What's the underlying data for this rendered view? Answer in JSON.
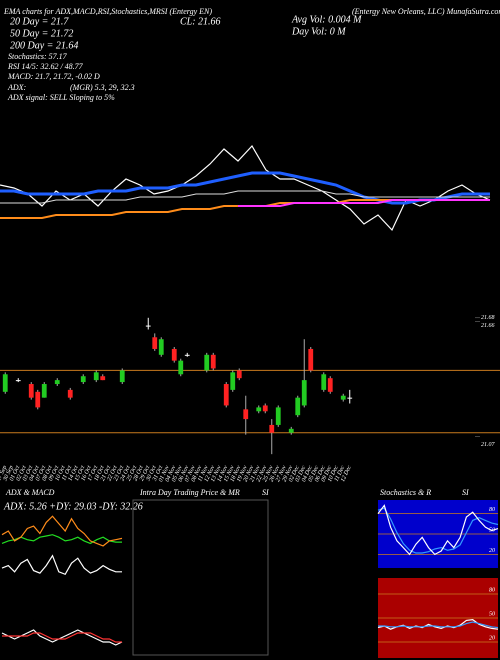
{
  "chart_data": [
    {
      "type": "line",
      "title": "CL: 21.66",
      "annotations": [
        "EMA charts for ADX,MACD,RSI,Stochastics,MRSI (Entergy EN)",
        "20 Day = 21.7",
        "50 Day = 21.72",
        "200 Day = 21.64",
        "Stochastics: 57.17",
        "RSI 14/5: 32.62 / 48.77",
        "MACD: 21.7, 21.72, -0.02 D",
        "ADX:",
        "(MGR) 5.3, 29, 32.3",
        "ADX  signal: SELL Sloping to 5%",
        "Avg Vol: 0.004  M",
        "Day Vol: 0  M",
        "(Entergy New Orleans, LLC) MunafaSutra.com"
      ],
      "ylim": [
        21.0,
        22.0
      ],
      "series": [
        {
          "color": "#ffffff",
          "values": [
            21.45,
            21.44,
            21.42,
            21.38,
            21.43,
            21.4,
            21.42,
            21.38,
            21.43,
            21.47,
            21.45,
            21.42,
            21.43,
            21.45,
            21.48,
            21.52,
            21.57,
            21.53,
            21.58,
            21.5,
            21.47,
            21.47,
            21.45,
            21.43,
            21.4,
            21.37,
            21.32,
            21.35,
            21.3,
            21.4,
            21.38,
            21.4,
            21.43,
            21.45,
            21.42,
            21.4
          ]
        },
        {
          "color": "#1f5fff",
          "values": [
            21.43,
            21.43,
            21.42,
            21.42,
            21.42,
            21.42,
            21.42,
            21.43,
            21.43,
            21.43,
            21.44,
            21.44,
            21.44,
            21.45,
            21.45,
            21.46,
            21.47,
            21.48,
            21.49,
            21.49,
            21.49,
            21.48,
            21.47,
            21.46,
            21.45,
            21.43,
            21.41,
            21.4,
            21.39,
            21.39,
            21.4,
            21.4,
            21.41,
            21.42,
            21.42,
            21.42
          ]
        },
        {
          "color": "#dddddd",
          "values": [
            21.39,
            21.39,
            21.39,
            21.39,
            21.4,
            21.4,
            21.4,
            21.4,
            21.4,
            21.4,
            21.41,
            21.41,
            21.41,
            21.41,
            21.42,
            21.42,
            21.42,
            21.43,
            21.43,
            21.43,
            21.43,
            21.43,
            21.43,
            21.43,
            21.42,
            21.42,
            21.41,
            21.41,
            21.41,
            21.41,
            21.41,
            21.41,
            21.41,
            21.41,
            21.41,
            21.41
          ]
        },
        {
          "color": "#ff8c1a",
          "values": [
            21.34,
            21.34,
            21.34,
            21.34,
            21.35,
            21.35,
            21.35,
            21.35,
            21.35,
            21.36,
            21.36,
            21.36,
            21.36,
            21.37,
            21.37,
            21.37,
            21.38,
            21.38,
            21.38,
            21.38,
            21.39,
            21.39,
            21.39,
            21.39,
            21.39,
            21.4,
            21.4,
            21.4,
            21.4,
            21.4,
            21.4,
            21.4,
            21.4,
            21.4,
            21.4,
            21.4
          ]
        },
        {
          "color": "#ff33ff",
          "values": [
            null,
            null,
            null,
            null,
            null,
            null,
            null,
            null,
            null,
            null,
            null,
            null,
            null,
            null,
            null,
            null,
            null,
            21.38,
            21.38,
            21.38,
            21.38,
            21.39,
            21.39,
            21.39,
            21.39,
            21.39,
            21.39,
            21.39,
            21.4,
            21.4,
            21.4,
            21.4,
            21.4,
            21.4,
            21.4,
            21.4
          ]
        }
      ]
    },
    {
      "type": "candlestick",
      "categories": [
        "27 Sep",
        "30 Sep",
        "01 Oct",
        "02 Oct",
        "03 Oct",
        "04 Oct",
        "07 Oct",
        "08 Oct",
        "09 Oct",
        "10 Oct",
        "11 Oct",
        "14 Oct",
        "15 Oct",
        "16 Oct",
        "17 Oct",
        "18 Oct",
        "21 Oct",
        "22 Oct",
        "23 Oct",
        "24 Oct",
        "25 Oct",
        "28 Oct",
        "29 Oct",
        "30 Oct",
        "31 Oct",
        "01 Nov",
        "04 Nov",
        "05 Nov",
        "06 Nov",
        "07 Nov",
        "08 Nov",
        "11 Nov",
        "12 Nov",
        "13 Nov",
        "14 Nov",
        "15 Nov",
        "18 Nov",
        "19 Nov",
        "20 Nov",
        "21 Nov",
        "22 Nov",
        "25 Nov",
        "26 Nov",
        "27 Nov",
        "29 Nov",
        "02 Dec",
        "03 Dec",
        "04 Dec",
        "05 Dec",
        "06 Dec",
        "09 Dec",
        "10 Dec",
        "11 Dec",
        "12 Dec"
      ],
      "open": [
        21.3,
        null,
        21.36,
        null,
        21.34,
        21.3,
        21.27,
        null,
        21.34,
        null,
        21.31,
        null,
        21.35,
        null,
        21.36,
        21.38,
        null,
        null,
        21.35,
        null,
        null,
        null,
        21.64,
        21.58,
        21.49,
        null,
        21.52,
        21.39,
        21.49,
        null,
        null,
        21.41,
        21.49,
        null,
        21.34,
        21.31,
        21.41,
        21.21,
        null,
        21.2,
        21.23,
        21.13,
        21.13,
        null,
        21.09,
        21.18,
        21.23,
        21.52,
        null,
        21.31,
        21.37,
        null,
        21.26,
        21.27
      ],
      "high": [
        21.4,
        null,
        21.37,
        null,
        21.35,
        21.31,
        21.35,
        null,
        21.37,
        null,
        21.32,
        null,
        21.39,
        null,
        21.41,
        21.39,
        null,
        null,
        21.42,
        null,
        null,
        null,
        21.68,
        21.6,
        21.58,
        null,
        21.53,
        21.47,
        21.5,
        null,
        null,
        21.5,
        21.5,
        null,
        21.35,
        21.41,
        21.42,
        21.28,
        null,
        21.23,
        21.24,
        21.16,
        21.23,
        null,
        21.12,
        21.28,
        21.57,
        21.53,
        null,
        21.4,
        21.38,
        null,
        21.29,
        21.31
      ],
      "low": [
        21.29,
        null,
        21.35,
        null,
        21.26,
        21.21,
        21.27,
        null,
        21.33,
        null,
        21.26,
        null,
        21.34,
        null,
        21.35,
        21.36,
        null,
        null,
        21.34,
        null,
        null,
        null,
        21.62,
        21.51,
        21.48,
        null,
        21.45,
        21.38,
        21.48,
        null,
        null,
        21.4,
        21.41,
        null,
        21.22,
        21.3,
        21.36,
        21.08,
        null,
        21.19,
        21.19,
        20.98,
        21.12,
        null,
        21.08,
        21.17,
        21.22,
        21.4,
        null,
        21.3,
        21.29,
        null,
        21.25,
        21.24
      ],
      "close": [
        21.39,
        null,
        21.36,
        null,
        21.27,
        21.22,
        21.34,
        null,
        21.36,
        null,
        21.27,
        null,
        21.38,
        null,
        21.4,
        21.36,
        null,
        null,
        21.41,
        null,
        null,
        null,
        21.64,
        21.52,
        21.57,
        null,
        21.46,
        21.46,
        21.49,
        null,
        null,
        21.49,
        21.42,
        null,
        21.23,
        21.4,
        21.37,
        21.16,
        null,
        21.22,
        21.2,
        21.09,
        21.22,
        null,
        21.11,
        21.27,
        21.36,
        21.41,
        null,
        21.39,
        21.3,
        null,
        21.28,
        21.27
      ],
      "ylim": [
        20.95,
        21.72
      ],
      "yticks": [
        21.68,
        21.66,
        21.07
      ],
      "levels": [
        21.41,
        21.09
      ],
      "level_color": "#c87a1e",
      "up_color": "#22cc22",
      "down_color": "#ff2222"
    },
    {
      "type": "line",
      "title": "ADX  & MACD",
      "subtitle": "ADX: 5.26 +DY: 29.03 -DY: 32.26",
      "ylim": [
        0,
        55
      ],
      "series": [
        {
          "color": "#22dd22",
          "values": [
            28,
            30,
            31,
            33,
            31,
            30,
            33,
            34,
            35,
            33,
            30,
            31,
            33,
            30,
            28,
            31,
            33,
            30,
            29,
            29
          ]
        },
        {
          "color": "#ff8c1a",
          "values": [
            35,
            38,
            30,
            33,
            40,
            42,
            36,
            45,
            50,
            44,
            38,
            48,
            40,
            36,
            30,
            28,
            26,
            30,
            31,
            32
          ]
        },
        {
          "color": "#ffffff",
          "values": [
            8,
            10,
            5,
            12,
            15,
            6,
            4,
            10,
            18,
            5,
            3,
            12,
            16,
            8,
            4,
            6,
            10,
            7,
            5,
            5
          ]
        }
      ]
    },
    {
      "type": "line",
      "ylim": [
        -0.08,
        0.08
      ],
      "series": [
        {
          "color": "#ffffff",
          "values": [
            0.01,
            0.0,
            -0.01,
            0.0,
            0.01,
            0.02,
            0.0,
            -0.01,
            -0.02,
            -0.01,
            0.0,
            0.01,
            0.02,
            0.01,
            0.0,
            -0.01,
            -0.02,
            -0.02,
            -0.03,
            -0.02
          ]
        },
        {
          "color": "#ff3333",
          "values": [
            0.0,
            0.0,
            0.0,
            0.0,
            0.0,
            0.01,
            0.01,
            0.0,
            -0.01,
            -0.01,
            -0.01,
            0.0,
            0.01,
            0.01,
            0.01,
            0.0,
            -0.01,
            -0.01,
            -0.02,
            -0.02
          ]
        }
      ]
    },
    {
      "type": "box",
      "title": "Intra Day Trading Price  & MR",
      "subtitle": "SI"
    },
    {
      "type": "line",
      "title": "Stochastics & R",
      "subtitle": "SI",
      "background": "#0000cc",
      "grid_color": "#c87a1e",
      "ylim": [
        0,
        100
      ],
      "yticks": [
        80,
        50,
        20
      ],
      "series": [
        {
          "color": "#3399ff",
          "values": [
            85,
            88,
            72,
            52,
            36,
            26,
            22,
            22,
            24,
            28,
            30,
            26,
            28,
            34,
            52,
            70,
            74,
            70,
            66,
            64
          ]
        },
        {
          "color": "#ffffff",
          "values": [
            80,
            92,
            60,
            40,
            30,
            20,
            35,
            45,
            30,
            20,
            25,
            40,
            30,
            45,
            75,
            82,
            70,
            60,
            55,
            58
          ]
        }
      ]
    },
    {
      "type": "line",
      "background": "#aa0000",
      "grid_color": "#c87a1e",
      "ylim": [
        0,
        100
      ],
      "yticks": [
        80,
        50,
        20
      ],
      "series": [
        {
          "color": "#ffffff",
          "values": [
            38,
            40,
            36,
            39,
            41,
            37,
            40,
            38,
            42,
            39,
            37,
            40,
            38,
            41,
            47,
            48,
            42,
            39,
            37,
            36
          ]
        },
        {
          "color": "#3399ff",
          "values": [
            40,
            40,
            39,
            39,
            40,
            39,
            39,
            39,
            40,
            40,
            39,
            39,
            39,
            40,
            43,
            45,
            43,
            41,
            39,
            38
          ]
        }
      ]
    }
  ]
}
